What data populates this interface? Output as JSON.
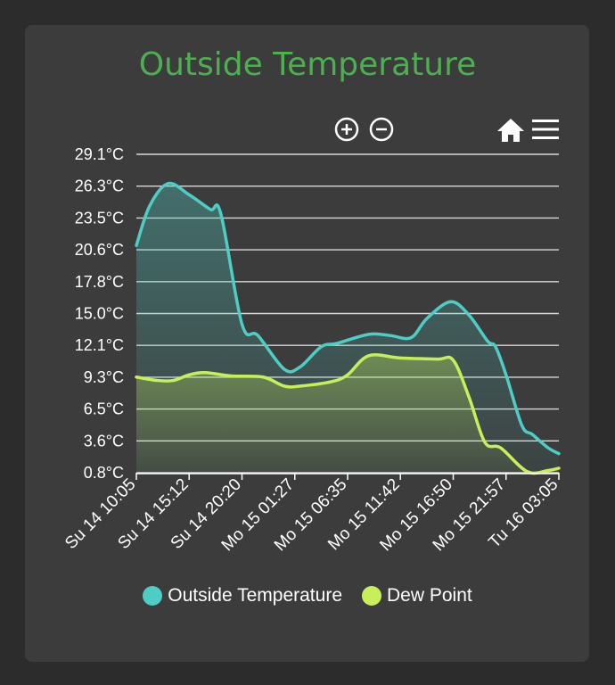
{
  "colors": {
    "page_bg": "#2c2c2c",
    "card_bg": "#3c3c3c",
    "title": "#4caf50",
    "outside": "#4ecdc4",
    "dew": "#c6ef5a",
    "grid": "#d8d8d8",
    "text": "#ffffff"
  },
  "toolbar": {
    "zoom_in_icon": "zoom-in-icon",
    "zoom_out_icon": "zoom-out-icon",
    "home_icon": "home-icon",
    "menu_icon": "menu-icon"
  },
  "chart_data": {
    "type": "area",
    "title": "Outside Temperature",
    "y_ticks": [
      "29.1°C",
      "26.3°C",
      "23.5°C",
      "20.6°C",
      "17.8°C",
      "15.0°C",
      "12.1°C",
      "9.3°C",
      "6.5°C",
      "3.6°C",
      "0.8°C"
    ],
    "ylim": [
      0.8,
      29.1
    ],
    "x_ticks": [
      "Su 14 10:05",
      "Su 14 15:12",
      "Su 14 20:20",
      "Mo 15 01:27",
      "Mo 15 06:35",
      "Mo 15 11:42",
      "Mo 15 16:50",
      "Mo 15 21:57",
      "Tu 16 03:05"
    ],
    "grid": true,
    "legend_position": "bottom",
    "series": [
      {
        "name": "Outside Temperature",
        "color": "#4ecdc4",
        "points": [
          [
            0.0,
            21.0
          ],
          [
            0.25,
            24.5
          ],
          [
            0.6,
            26.5
          ],
          [
            1.0,
            25.5
          ],
          [
            1.4,
            24.2
          ],
          [
            1.6,
            23.8
          ],
          [
            2.0,
            14.0
          ],
          [
            2.3,
            13.0
          ],
          [
            2.8,
            10.0
          ],
          [
            3.1,
            10.2
          ],
          [
            3.5,
            12.0
          ],
          [
            3.8,
            12.3
          ],
          [
            4.4,
            13.1
          ],
          [
            4.8,
            13.0
          ],
          [
            5.2,
            12.8
          ],
          [
            5.5,
            14.5
          ],
          [
            5.95,
            16.0
          ],
          [
            6.3,
            14.8
          ],
          [
            6.65,
            12.5
          ],
          [
            6.8,
            12.0
          ],
          [
            7.0,
            9.5
          ],
          [
            7.3,
            5.0
          ],
          [
            7.5,
            4.2
          ],
          [
            7.8,
            3.0
          ],
          [
            8.0,
            2.5
          ]
        ]
      },
      {
        "name": "Dew Point",
        "color": "#c6ef5a",
        "points": [
          [
            0.0,
            9.3
          ],
          [
            0.4,
            9.0
          ],
          [
            0.7,
            9.0
          ],
          [
            1.0,
            9.5
          ],
          [
            1.3,
            9.7
          ],
          [
            1.8,
            9.4
          ],
          [
            2.4,
            9.3
          ],
          [
            2.8,
            8.5
          ],
          [
            3.1,
            8.5
          ],
          [
            3.7,
            8.9
          ],
          [
            4.0,
            9.5
          ],
          [
            4.4,
            11.2
          ],
          [
            5.0,
            11.0
          ],
          [
            5.7,
            10.9
          ],
          [
            6.0,
            10.8
          ],
          [
            6.3,
            7.5
          ],
          [
            6.6,
            3.5
          ],
          [
            6.9,
            3.0
          ],
          [
            7.4,
            0.9
          ],
          [
            7.8,
            1.0
          ],
          [
            8.0,
            1.2
          ]
        ]
      }
    ]
  }
}
